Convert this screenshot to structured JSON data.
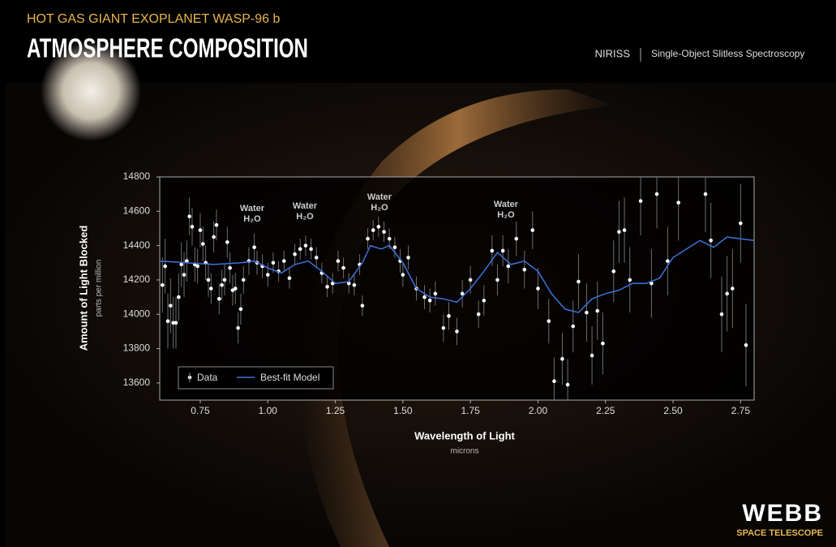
{
  "header": {
    "kicker": "HOT GAS GIANT EXOPLANET WASP-96 b",
    "title": "ATMOSPHERE COMPOSITION",
    "instrument": "NIRISS",
    "mode": "Single-Object Slitless Spectroscopy",
    "logo": "WEBB",
    "logo_sub": "SPACE TELESCOPE"
  },
  "chart_data": {
    "type": "scatter",
    "xlabel": "Wavelength of Light",
    "xunit": "microns",
    "ylabel": "Amount of Light Blocked",
    "yunit": "parts per million",
    "xlim": [
      0.6,
      2.8
    ],
    "ylim": [
      13500,
      14800
    ],
    "xticks": [
      0.75,
      {
        "value": 1,
        "label": "1.00"
      },
      1.25,
      {
        "value": 1.5,
        "label": "1.50"
      },
      1.75,
      {
        "value": 2,
        "label": "2.00"
      },
      2.25,
      {
        "value": 2.5,
        "label": "2.50"
      },
      2.75
    ],
    "yticks": [
      13600,
      13800,
      14000,
      14200,
      14400,
      14600,
      14800
    ],
    "legend": "lower left",
    "annotations": [
      {
        "label": "Water",
        "formula": "H₂O"
      },
      {
        "label": "Water",
        "formula": "H₂O"
      },
      {
        "label": "Water",
        "formula": "H₂O"
      },
      {
        "label": "Water",
        "formula": "H₂O"
      }
    ],
    "series": [
      {
        "name": "Data",
        "color": "#ffffff",
        "x": [
          0.61,
          0.62,
          0.63,
          0.64,
          0.65,
          0.66,
          0.67,
          0.68,
          0.69,
          0.7,
          0.71,
          0.72,
          0.73,
          0.74,
          0.75,
          0.76,
          0.77,
          0.78,
          0.79,
          0.8,
          0.81,
          0.82,
          0.83,
          0.84,
          0.85,
          0.86,
          0.87,
          0.88,
          0.89,
          0.9,
          0.91,
          0.93,
          0.95,
          0.96,
          0.98,
          1.0,
          1.02,
          1.04,
          1.06,
          1.08,
          1.1,
          1.12,
          1.14,
          1.16,
          1.18,
          1.2,
          1.22,
          1.24,
          1.26,
          1.28,
          1.3,
          1.32,
          1.34,
          1.35,
          1.37,
          1.39,
          1.41,
          1.43,
          1.45,
          1.47,
          1.49,
          1.5,
          1.52,
          1.55,
          1.58,
          1.6,
          1.62,
          1.65,
          1.67,
          1.7,
          1.72,
          1.75,
          1.78,
          1.8,
          1.83,
          1.85,
          1.87,
          1.89,
          1.92,
          1.95,
          1.98,
          2.0,
          2.04,
          2.06,
          2.09,
          2.11,
          2.13,
          2.15,
          2.18,
          2.2,
          2.22,
          2.24,
          2.28,
          2.3,
          2.32,
          2.34,
          2.38,
          2.42,
          2.44,
          2.48,
          2.52,
          2.62,
          2.64,
          2.68,
          2.7,
          2.72,
          2.75,
          2.77
        ],
        "values": [
          14170,
          14280,
          13960,
          14050,
          13950,
          13950,
          14100,
          14290,
          14230,
          14310,
          14570,
          14510,
          14290,
          14280,
          14490,
          14410,
          14300,
          14200,
          14150,
          14450,
          14520,
          14090,
          14170,
          14200,
          14420,
          14270,
          14140,
          14150,
          13920,
          14030,
          14200,
          14310,
          14390,
          14300,
          14280,
          14230,
          14300,
          14250,
          14310,
          14210,
          14350,
          14380,
          14400,
          14380,
          14330,
          14240,
          14160,
          14180,
          14310,
          14270,
          14180,
          14170,
          14290,
          14050,
          14440,
          14490,
          14510,
          14480,
          14440,
          14390,
          14310,
          14230,
          14330,
          14150,
          14100,
          14080,
          14120,
          13920,
          13990,
          13900,
          14120,
          14200,
          14000,
          14080,
          14370,
          14200,
          14370,
          14280,
          14440,
          14260,
          14490,
          14150,
          13960,
          13610,
          13740,
          13590,
          13930,
          14190,
          14010,
          13760,
          14020,
          13830,
          14250,
          14480,
          14490,
          14200,
          14660,
          14180,
          14700,
          14310,
          14650,
          14700,
          14430,
          14000,
          14120,
          14150,
          14530,
          13820
        ],
        "errors": [
          160,
          160,
          160,
          160,
          150,
          150,
          140,
          130,
          130,
          120,
          110,
          110,
          100,
          100,
          100,
          100,
          100,
          100,
          90,
          90,
          90,
          90,
          90,
          90,
          90,
          90,
          90,
          90,
          90,
          90,
          80,
          80,
          80,
          70,
          70,
          70,
          60,
          60,
          60,
          60,
          60,
          60,
          60,
          60,
          60,
          60,
          60,
          60,
          60,
          60,
          60,
          60,
          60,
          60,
          60,
          60,
          60,
          60,
          60,
          60,
          70,
          70,
          70,
          70,
          70,
          70,
          70,
          80,
          80,
          80,
          80,
          80,
          80,
          90,
          90,
          90,
          90,
          100,
          100,
          110,
          110,
          120,
          130,
          140,
          150,
          150,
          150,
          160,
          170,
          170,
          170,
          180,
          180,
          180,
          190,
          190,
          200,
          200,
          200,
          200,
          220,
          220,
          220,
          220,
          220,
          230,
          230,
          240
        ]
      },
      {
        "name": "Best-fit Model",
        "color": "#3d72d9",
        "x": [
          0.6,
          0.7,
          0.8,
          0.9,
          0.95,
          1.0,
          1.05,
          1.1,
          1.15,
          1.2,
          1.25,
          1.3,
          1.35,
          1.38,
          1.42,
          1.45,
          1.5,
          1.55,
          1.6,
          1.65,
          1.7,
          1.75,
          1.8,
          1.85,
          1.9,
          1.95,
          2.0,
          2.05,
          2.1,
          2.15,
          2.2,
          2.25,
          2.3,
          2.35,
          2.4,
          2.45,
          2.5,
          2.55,
          2.6,
          2.65,
          2.7,
          2.75,
          2.8
        ],
        "values": [
          14310,
          14300,
          14290,
          14300,
          14310,
          14270,
          14240,
          14290,
          14310,
          14250,
          14180,
          14190,
          14300,
          14400,
          14380,
          14400,
          14300,
          14150,
          14100,
          14090,
          14070,
          14150,
          14250,
          14360,
          14290,
          14310,
          14250,
          14120,
          14030,
          14010,
          14090,
          14120,
          14140,
          14180,
          14180,
          14210,
          14330,
          14380,
          14430,
          14390,
          14450,
          14440,
          14430
        ]
      }
    ]
  }
}
